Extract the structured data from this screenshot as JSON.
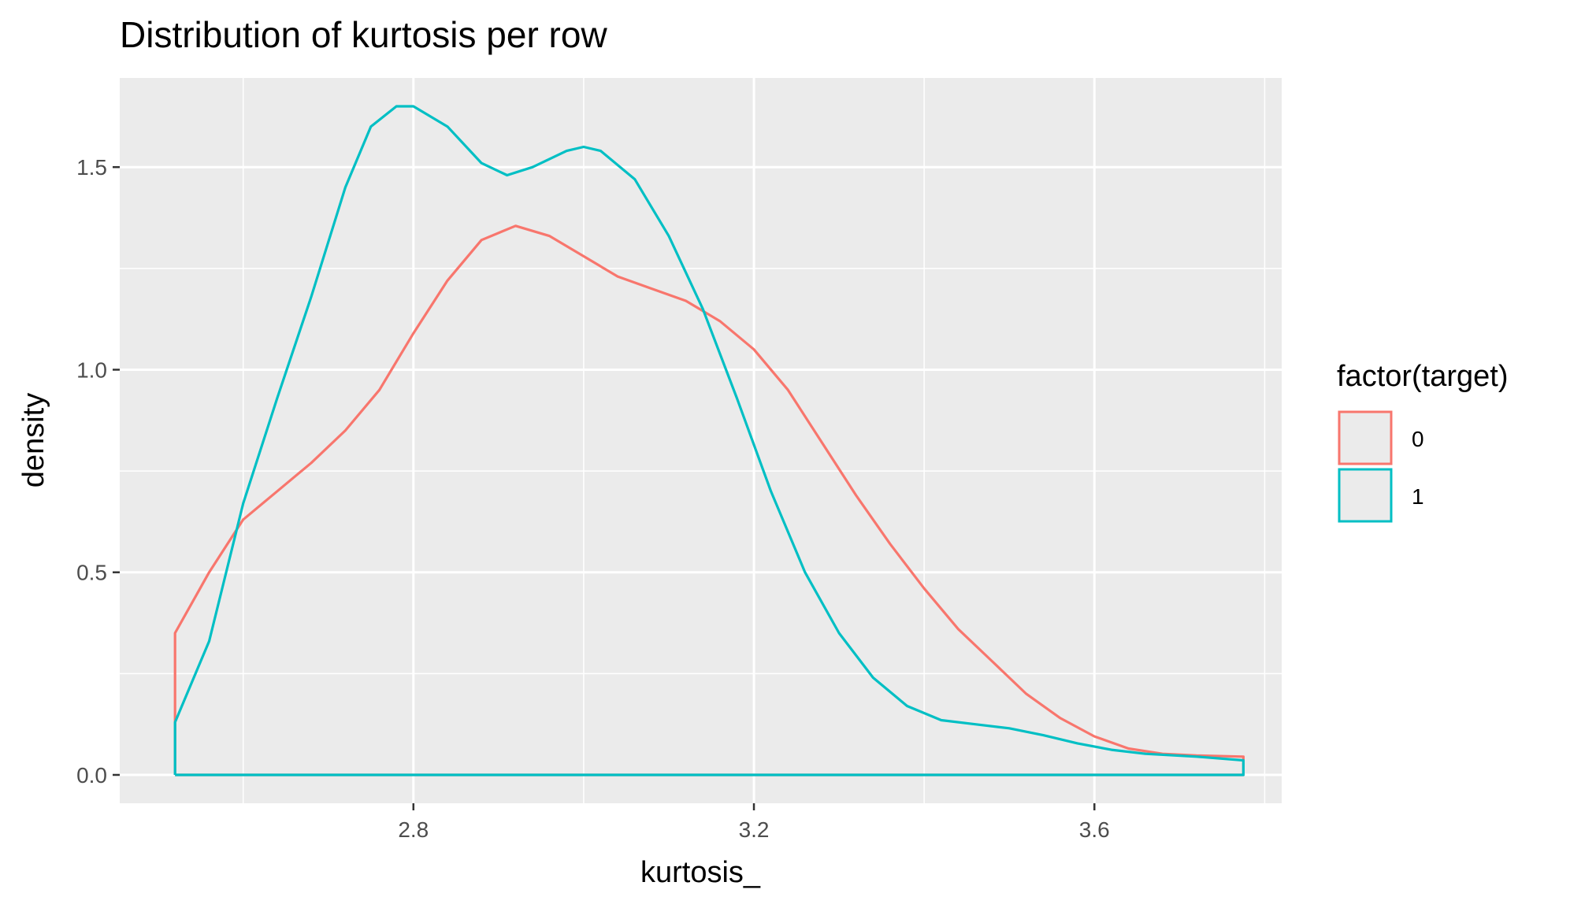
{
  "chart_data": {
    "type": "line",
    "title": "Distribution of kurtosis per row",
    "xlabel": "kurtosis_",
    "ylabel": "density",
    "xlim": [
      2.455,
      3.82
    ],
    "ylim": [
      -0.07,
      1.72
    ],
    "x_ticks": [
      {
        "value": 2.8,
        "label": "2.8"
      },
      {
        "value": 3.2,
        "label": "3.2"
      },
      {
        "value": 3.6,
        "label": "3.6"
      }
    ],
    "x_minor_ticks": [
      2.6,
      3.0,
      3.4,
      3.8
    ],
    "y_ticks": [
      {
        "value": 0.0,
        "label": "0.0"
      },
      {
        "value": 0.5,
        "label": "0.5"
      },
      {
        "value": 1.0,
        "label": "1.0"
      },
      {
        "value": 1.5,
        "label": "1.5"
      }
    ],
    "y_minor_ticks": [
      0.25,
      0.75,
      1.25
    ],
    "grid": true,
    "legend": {
      "title": "factor(target)",
      "position": "right"
    },
    "series": [
      {
        "name": "0",
        "color": "#F8766D",
        "points": [
          [
            2.52,
            0.0
          ],
          [
            2.52,
            0.35
          ],
          [
            2.56,
            0.5
          ],
          [
            2.6,
            0.63
          ],
          [
            2.64,
            0.7
          ],
          [
            2.68,
            0.77
          ],
          [
            2.72,
            0.85
          ],
          [
            2.76,
            0.95
          ],
          [
            2.8,
            1.09
          ],
          [
            2.84,
            1.22
          ],
          [
            2.88,
            1.32
          ],
          [
            2.92,
            1.355
          ],
          [
            2.96,
            1.33
          ],
          [
            3.0,
            1.28
          ],
          [
            3.04,
            1.23
          ],
          [
            3.08,
            1.2
          ],
          [
            3.12,
            1.17
          ],
          [
            3.16,
            1.12
          ],
          [
            3.2,
            1.05
          ],
          [
            3.24,
            0.95
          ],
          [
            3.28,
            0.82
          ],
          [
            3.32,
            0.69
          ],
          [
            3.36,
            0.57
          ],
          [
            3.4,
            0.46
          ],
          [
            3.44,
            0.36
          ],
          [
            3.48,
            0.28
          ],
          [
            3.52,
            0.2
          ],
          [
            3.56,
            0.14
          ],
          [
            3.6,
            0.095
          ],
          [
            3.64,
            0.065
          ],
          [
            3.68,
            0.052
          ],
          [
            3.72,
            0.048
          ],
          [
            3.775,
            0.045
          ],
          [
            3.775,
            0.0
          ],
          [
            2.52,
            0.0
          ]
        ]
      },
      {
        "name": "1",
        "color": "#00BFC4",
        "points": [
          [
            2.52,
            0.0
          ],
          [
            2.52,
            0.13
          ],
          [
            2.56,
            0.33
          ],
          [
            2.6,
            0.67
          ],
          [
            2.64,
            0.93
          ],
          [
            2.68,
            1.18
          ],
          [
            2.72,
            1.45
          ],
          [
            2.75,
            1.6
          ],
          [
            2.78,
            1.65
          ],
          [
            2.8,
            1.65
          ],
          [
            2.84,
            1.6
          ],
          [
            2.88,
            1.51
          ],
          [
            2.91,
            1.48
          ],
          [
            2.94,
            1.5
          ],
          [
            2.98,
            1.54
          ],
          [
            3.0,
            1.55
          ],
          [
            3.02,
            1.54
          ],
          [
            3.06,
            1.47
          ],
          [
            3.1,
            1.33
          ],
          [
            3.14,
            1.15
          ],
          [
            3.18,
            0.93
          ],
          [
            3.22,
            0.7
          ],
          [
            3.26,
            0.5
          ],
          [
            3.3,
            0.35
          ],
          [
            3.34,
            0.24
          ],
          [
            3.38,
            0.17
          ],
          [
            3.42,
            0.135
          ],
          [
            3.46,
            0.125
          ],
          [
            3.5,
            0.115
          ],
          [
            3.54,
            0.098
          ],
          [
            3.58,
            0.078
          ],
          [
            3.62,
            0.062
          ],
          [
            3.66,
            0.052
          ],
          [
            3.72,
            0.045
          ],
          [
            3.775,
            0.036
          ],
          [
            3.775,
            0.0
          ],
          [
            2.52,
            0.0
          ]
        ]
      }
    ]
  }
}
